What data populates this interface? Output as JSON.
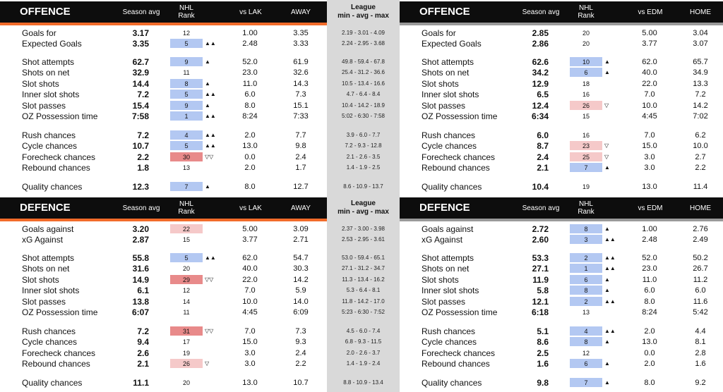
{
  "colors": {
    "accent_orange": "#f26b2a",
    "accent_grey": "#9a9a9a",
    "rank_blue": "#b3c8f2",
    "rank_red_strong": "#e88a8a",
    "rank_red_light": "#f5c9c9",
    "header_bg": "#0d0d0d",
    "league_bg": "#d9d9d9"
  },
  "league_header": {
    "line1": "League",
    "line2": "min - avg - max"
  },
  "panels": [
    {
      "id": "tl",
      "title": "OFFENCE",
      "avg_label": "Season avg",
      "rank_label1": "NHL",
      "rank_label2": "Rank",
      "vs_label": "vs LAK",
      "loc_label": "AWAY",
      "accent": "orange",
      "rows": [
        {
          "label": "Goals for",
          "avg": "3.17",
          "rank": "12",
          "color": "",
          "arrow": "",
          "vs": "1.00",
          "loc": "3.35",
          "league": "2.19 - 3.01 - 4.09"
        },
        {
          "label": "Expected Goals",
          "avg": "3.35",
          "rank": "5",
          "color": "blue",
          "arrow": "▲▲",
          "vs": "2.48",
          "loc": "3.33",
          "league": "2.24 - 2.95 - 3.68"
        },
        {
          "label": "Shot attempts",
          "avg": "62.7",
          "rank": "9",
          "color": "blue",
          "arrow": "▲",
          "vs": "52.0",
          "loc": "61.9",
          "league": "49.8 - 59.4 - 67.8"
        },
        {
          "label": "Shots on net",
          "avg": "32.9",
          "rank": "11",
          "color": "",
          "arrow": "",
          "vs": "23.0",
          "loc": "32.6",
          "league": "25.4 - 31.2 - 36.6"
        },
        {
          "label": "Slot shots",
          "avg": "14.4",
          "rank": "8",
          "color": "blue",
          "arrow": "▲",
          "vs": "11.0",
          "loc": "14.3",
          "league": "10.5 - 13.4 - 16.6"
        },
        {
          "label": "Inner slot shots",
          "avg": "7.2",
          "rank": "5",
          "color": "blue",
          "arrow": "▲▲",
          "vs": "6.0",
          "loc": "7.3",
          "league": "4.7 - 6.4 - 8.4"
        },
        {
          "label": "Slot passes",
          "avg": "15.4",
          "rank": "9",
          "color": "blue",
          "arrow": "▲",
          "vs": "8.0",
          "loc": "15.1",
          "league": "10.4 - 14.2 - 18.9"
        },
        {
          "label": "OZ Possession time",
          "avg": "7:58",
          "rank": "1",
          "color": "blue",
          "arrow": "▲▲",
          "vs": "8:24",
          "loc": "7:33",
          "league": "5:02 - 6:30 - 7:58"
        },
        {
          "label": "Rush chances",
          "avg": "7.2",
          "rank": "4",
          "color": "blue",
          "arrow": "▲▲",
          "vs": "2.0",
          "loc": "7.7",
          "league": "3.9 - 6.0 - 7.7"
        },
        {
          "label": "Cycle chances",
          "avg": "10.7",
          "rank": "5",
          "color": "blue",
          "arrow": "▲▲",
          "vs": "13.0",
          "loc": "9.8",
          "league": "7.2 - 9.3 - 12.8"
        },
        {
          "label": "Forecheck chances",
          "avg": "2.2",
          "rank": "30",
          "color": "red2",
          "arrow": "▽▽",
          "vs": "0.0",
          "loc": "2.4",
          "league": "2.1 - 2.6 - 3.5"
        },
        {
          "label": "Rebound chances",
          "avg": "1.8",
          "rank": "13",
          "color": "",
          "arrow": "",
          "vs": "2.0",
          "loc": "1.7",
          "league": "1.4 - 1.9 - 2.5"
        },
        {
          "label": "Quality chances",
          "avg": "12.3",
          "rank": "7",
          "color": "blue",
          "arrow": "▲",
          "vs": "8.0",
          "loc": "12.7",
          "league": "8.6 - 10.9 - 13.7"
        }
      ]
    },
    {
      "id": "tr",
      "title": "OFFENCE",
      "avg_label": "Season avg",
      "rank_label1": "NHL",
      "rank_label2": "Rank",
      "vs_label": "vs EDM",
      "loc_label": "HOME",
      "accent": "grey",
      "rows": [
        {
          "label": "Goals for",
          "avg": "2.85",
          "rank": "20",
          "color": "",
          "arrow": "",
          "vs": "5.00",
          "loc": "3.04"
        },
        {
          "label": "Expected Goals",
          "avg": "2.86",
          "rank": "20",
          "color": "",
          "arrow": "",
          "vs": "3.77",
          "loc": "3.07"
        },
        {
          "label": "Shot attempts",
          "avg": "62.6",
          "rank": "10",
          "color": "blue",
          "arrow": "▲",
          "vs": "62.0",
          "loc": "65.7"
        },
        {
          "label": "Shots on net",
          "avg": "34.2",
          "rank": "6",
          "color": "blue",
          "arrow": "▲",
          "vs": "40.0",
          "loc": "34.9"
        },
        {
          "label": "Slot shots",
          "avg": "12.9",
          "rank": "18",
          "color": "",
          "arrow": "",
          "vs": "22.0",
          "loc": "13.3"
        },
        {
          "label": "Inner slot shots",
          "avg": "6.5",
          "rank": "16",
          "color": "",
          "arrow": "",
          "vs": "7.0",
          "loc": "7.2"
        },
        {
          "label": "Slot passes",
          "avg": "12.4",
          "rank": "26",
          "color": "red1",
          "arrow": "▽",
          "vs": "10.0",
          "loc": "14.2"
        },
        {
          "label": "OZ Possession time",
          "avg": "6:34",
          "rank": "15",
          "color": "",
          "arrow": "",
          "vs": "4:45",
          "loc": "7:02"
        },
        {
          "label": "Rush chances",
          "avg": "6.0",
          "rank": "16",
          "color": "",
          "arrow": "",
          "vs": "7.0",
          "loc": "6.2"
        },
        {
          "label": "Cycle chances",
          "avg": "8.7",
          "rank": "23",
          "color": "red1",
          "arrow": "▽",
          "vs": "15.0",
          "loc": "10.0"
        },
        {
          "label": "Forecheck chances",
          "avg": "2.4",
          "rank": "25",
          "color": "red1",
          "arrow": "▽",
          "vs": "3.0",
          "loc": "2.7"
        },
        {
          "label": "Rebound chances",
          "avg": "2.1",
          "rank": "7",
          "color": "blue",
          "arrow": "▲",
          "vs": "3.0",
          "loc": "2.2"
        },
        {
          "label": "Quality chances",
          "avg": "10.4",
          "rank": "19",
          "color": "",
          "arrow": "",
          "vs": "13.0",
          "loc": "11.4"
        }
      ]
    },
    {
      "id": "bl",
      "title": "DEFENCE",
      "avg_label": "Season avg",
      "rank_label1": "NHL",
      "rank_label2": "Rank",
      "vs_label": "vs LAK",
      "loc_label": "AWAY",
      "accent": "orange",
      "rows": [
        {
          "label": "Goals against",
          "avg": "3.20",
          "rank": "22",
          "color": "red1",
          "arrow": "",
          "vs": "5.00",
          "loc": "3.09",
          "league": "2.37 - 3.00 - 3.98"
        },
        {
          "label": "xG Against",
          "avg": "2.87",
          "rank": "15",
          "color": "",
          "arrow": "",
          "vs": "3.77",
          "loc": "2.71",
          "league": "2.53 - 2.95 - 3.61"
        },
        {
          "label": "Shot attempts",
          "avg": "55.8",
          "rank": "5",
          "color": "blue",
          "arrow": "▲▲",
          "vs": "62.0",
          "loc": "54.7",
          "league": "53.0 - 59.4 - 65.1"
        },
        {
          "label": "Shots on net",
          "avg": "31.6",
          "rank": "20",
          "color": "",
          "arrow": "",
          "vs": "40.0",
          "loc": "30.3",
          "league": "27.1 - 31.2 - 34.7"
        },
        {
          "label": "Slot shots",
          "avg": "14.9",
          "rank": "29",
          "color": "red2",
          "arrow": "▽▽",
          "vs": "22.0",
          "loc": "14.2",
          "league": "11.3 - 13.4 - 16.2"
        },
        {
          "label": "Inner slot shots",
          "avg": "6.1",
          "rank": "12",
          "color": "",
          "arrow": "",
          "vs": "7.0",
          "loc": "5.9",
          "league": "5.3 - 6.4 - 8.1"
        },
        {
          "label": "Slot passes",
          "avg": "13.8",
          "rank": "14",
          "color": "",
          "arrow": "",
          "vs": "10.0",
          "loc": "14.0",
          "league": "11.8 - 14.2 - 17.0"
        },
        {
          "label": "OZ Possession time",
          "avg": "6:07",
          "rank": "11",
          "color": "",
          "arrow": "",
          "vs": "4:45",
          "loc": "6:09",
          "league": "5:23 - 6:30 - 7:52"
        },
        {
          "label": "Rush chances",
          "avg": "7.2",
          "rank": "31",
          "color": "red2",
          "arrow": "▽▽",
          "vs": "7.0",
          "loc": "7.3",
          "league": "4.5 - 6.0 - 7.4"
        },
        {
          "label": "Cycle chances",
          "avg": "9.4",
          "rank": "17",
          "color": "",
          "arrow": "",
          "vs": "15.0",
          "loc": "9.3",
          "league": "6.8 - 9.3 - 11.5"
        },
        {
          "label": "Forecheck chances",
          "avg": "2.6",
          "rank": "19",
          "color": "",
          "arrow": "",
          "vs": "3.0",
          "loc": "2.4",
          "league": "2.0 - 2.6 - 3.7"
        },
        {
          "label": "Rebound chances",
          "avg": "2.1",
          "rank": "26",
          "color": "red1",
          "arrow": "▽",
          "vs": "3.0",
          "loc": "2.2",
          "league": "1.4 - 1.9 - 2.4"
        },
        {
          "label": "Quality chances",
          "avg": "11.1",
          "rank": "20",
          "color": "",
          "arrow": "",
          "vs": "13.0",
          "loc": "10.7",
          "league": "8.8 - 10.9 - 13.4"
        }
      ]
    },
    {
      "id": "br",
      "title": "DEFENCE",
      "avg_label": "Season avg",
      "rank_label1": "NHL",
      "rank_label2": "Rank",
      "vs_label": "vs EDM",
      "loc_label": "HOME",
      "accent": "grey",
      "rows": [
        {
          "label": "Goals against",
          "avg": "2.72",
          "rank": "8",
          "color": "blue",
          "arrow": "▲",
          "vs": "1.00",
          "loc": "2.76"
        },
        {
          "label": "xG Against",
          "avg": "2.60",
          "rank": "3",
          "color": "blue",
          "arrow": "▲▲",
          "vs": "2.48",
          "loc": "2.49"
        },
        {
          "label": "Shot attempts",
          "avg": "53.3",
          "rank": "2",
          "color": "blue",
          "arrow": "▲▲",
          "vs": "52.0",
          "loc": "50.2"
        },
        {
          "label": "Shots on net",
          "avg": "27.1",
          "rank": "1",
          "color": "blue",
          "arrow": "▲▲",
          "vs": "23.0",
          "loc": "26.7"
        },
        {
          "label": "Slot shots",
          "avg": "11.9",
          "rank": "6",
          "color": "blue",
          "arrow": "▲",
          "vs": "11.0",
          "loc": "11.2"
        },
        {
          "label": "Inner slot shots",
          "avg": "5.8",
          "rank": "8",
          "color": "blue",
          "arrow": "▲",
          "vs": "6.0",
          "loc": "6.0"
        },
        {
          "label": "Slot passes",
          "avg": "12.1",
          "rank": "2",
          "color": "blue",
          "arrow": "▲▲",
          "vs": "8.0",
          "loc": "11.6"
        },
        {
          "label": "OZ Possession time",
          "avg": "6:18",
          "rank": "13",
          "color": "",
          "arrow": "",
          "vs": "8:24",
          "loc": "5:42"
        },
        {
          "label": "Rush chances",
          "avg": "5.1",
          "rank": "4",
          "color": "blue",
          "arrow": "▲▲",
          "vs": "2.0",
          "loc": "4.4"
        },
        {
          "label": "Cycle chances",
          "avg": "8.6",
          "rank": "8",
          "color": "blue",
          "arrow": "▲",
          "vs": "13.0",
          "loc": "8.1"
        },
        {
          "label": "Forecheck chances",
          "avg": "2.5",
          "rank": "12",
          "color": "",
          "arrow": "",
          "vs": "0.0",
          "loc": "2.8"
        },
        {
          "label": "Rebound chances",
          "avg": "1.6",
          "rank": "6",
          "color": "blue",
          "arrow": "▲",
          "vs": "2.0",
          "loc": "1.6"
        },
        {
          "label": "Quality chances",
          "avg": "9.8",
          "rank": "7",
          "color": "blue",
          "arrow": "▲",
          "vs": "8.0",
          "loc": "9.2"
        }
      ]
    }
  ]
}
